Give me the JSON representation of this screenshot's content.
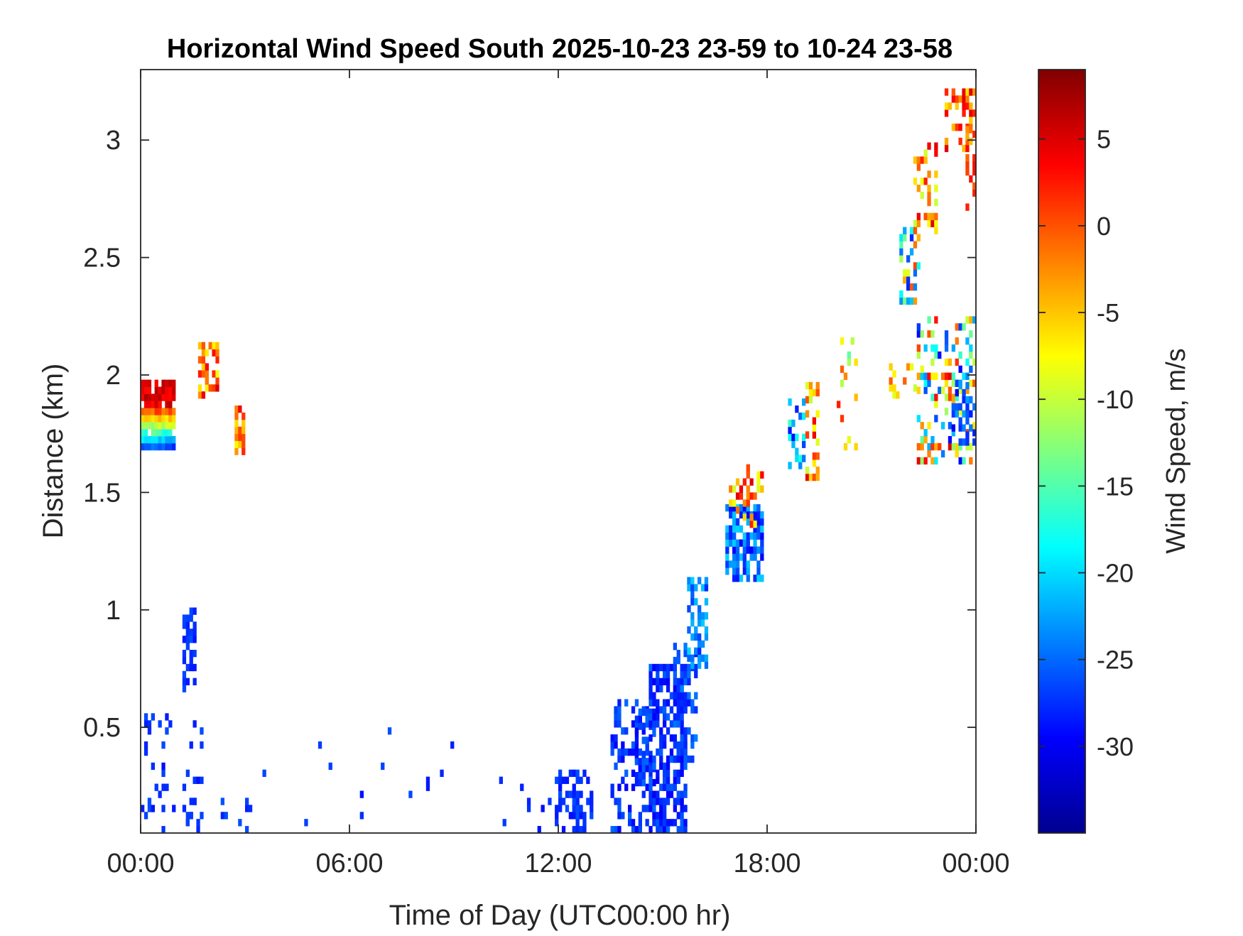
{
  "chart_data": {
    "type": "heatmap",
    "title": "Horizontal Wind Speed South 2025-10-23 23-59 to 10-24 23-58",
    "xlabel": "Time of Day (UTC00:00 hr)",
    "ylabel": "Distance (km)",
    "xlim_hours": [
      0,
      24
    ],
    "ylim": [
      0.05,
      3.3
    ],
    "x_ticks": [
      {
        "value": 0,
        "label": "00:00"
      },
      {
        "value": 6,
        "label": "06:00"
      },
      {
        "value": 12,
        "label": "12:00"
      },
      {
        "value": 18,
        "label": "18:00"
      },
      {
        "value": 24,
        "label": "00:00"
      }
    ],
    "y_ticks": [
      {
        "value": 0.5,
        "label": "0.5"
      },
      {
        "value": 1,
        "label": "1"
      },
      {
        "value": 1.5,
        "label": "1.5"
      },
      {
        "value": 2,
        "label": "2"
      },
      {
        "value": 2.5,
        "label": "2.5"
      },
      {
        "value": 3,
        "label": "3"
      }
    ],
    "colorbar": {
      "label": "Wind Speed, m/s",
      "colormap": "jet",
      "range": [
        -35,
        9
      ],
      "ticks": [
        {
          "value": 5,
          "label": "5"
        },
        {
          "value": 0,
          "label": "0"
        },
        {
          "value": -5,
          "label": "-5"
        },
        {
          "value": -10,
          "label": "-10"
        },
        {
          "value": -15,
          "label": "-15"
        },
        {
          "value": -20,
          "label": "-20"
        },
        {
          "value": -25,
          "label": "-25"
        },
        {
          "value": -30,
          "label": "-30"
        }
      ]
    },
    "grid": false,
    "cell_size": {
      "dt_hours": 0.1,
      "dz_km": 0.03
    },
    "clusters": [
      {
        "t": [
          0.0,
          1.0
        ],
        "z": [
          1.68,
          1.97
        ],
        "v": [
          -26,
          5
        ],
        "fill": 0.92,
        "vertical_gradient": true
      },
      {
        "t": [
          1.65,
          2.2
        ],
        "z": [
          1.9,
          2.12
        ],
        "v": [
          -8,
          5
        ],
        "fill": 0.55
      },
      {
        "t": [
          2.7,
          3.0
        ],
        "z": [
          1.66,
          1.85
        ],
        "v": [
          -10,
          5
        ],
        "fill": 0.6
      },
      {
        "t": [
          1.2,
          1.6
        ],
        "z": [
          0.65,
          1.0
        ],
        "v": [
          -29,
          -26
        ],
        "fill": 0.45
      },
      {
        "t": [
          0.0,
          1.8
        ],
        "z": [
          0.05,
          0.55
        ],
        "v": [
          -29,
          -26
        ],
        "fill": 0.12
      },
      {
        "t": [
          1.2,
          3.2
        ],
        "z": [
          0.05,
          0.2
        ],
        "v": [
          -29,
          -26
        ],
        "fill": 0.2
      },
      {
        "t": [
          3.5,
          10.5
        ],
        "z": [
          0.05,
          0.5
        ],
        "v": [
          -29,
          -26
        ],
        "fill": 0.012
      },
      {
        "t": [
          10.8,
          12.0
        ],
        "z": [
          0.05,
          0.25
        ],
        "v": [
          -29,
          -26
        ],
        "fill": 0.1
      },
      {
        "t": [
          11.9,
          13.0
        ],
        "z": [
          0.05,
          0.3
        ],
        "v": [
          -29,
          -26
        ],
        "fill": 0.45
      },
      {
        "t": [
          13.5,
          14.6
        ],
        "z": [
          0.05,
          0.6
        ],
        "v": [
          -30,
          -25
        ],
        "fill": 0.35
      },
      {
        "t": [
          14.2,
          14.8
        ],
        "z": [
          0.25,
          0.58
        ],
        "v": [
          -30,
          -25
        ],
        "fill": 0.6
      },
      {
        "t": [
          14.6,
          15.7
        ],
        "z": [
          0.05,
          0.75
        ],
        "v": [
          -30,
          -25
        ],
        "fill": 0.55
      },
      {
        "t": [
          15.3,
          16.0
        ],
        "z": [
          0.35,
          0.85
        ],
        "v": [
          -29,
          -24
        ],
        "fill": 0.45
      },
      {
        "t": [
          15.7,
          16.3
        ],
        "z": [
          0.75,
          1.12
        ],
        "v": [
          -28,
          -20
        ],
        "fill": 0.5
      },
      {
        "t": [
          16.8,
          17.9
        ],
        "z": [
          1.12,
          1.45
        ],
        "v": [
          -30,
          -20
        ],
        "fill": 0.65
      },
      {
        "t": [
          16.9,
          17.9
        ],
        "z": [
          1.35,
          1.62
        ],
        "v": [
          -10,
          5
        ],
        "fill": 0.4
      },
      {
        "t": [
          18.6,
          19.1
        ],
        "z": [
          1.6,
          1.9
        ],
        "v": [
          -30,
          -15
        ],
        "fill": 0.3
      },
      {
        "t": [
          19.1,
          19.5
        ],
        "z": [
          1.55,
          1.95
        ],
        "v": [
          -12,
          5
        ],
        "fill": 0.35
      },
      {
        "t": [
          20.0,
          20.6
        ],
        "z": [
          1.65,
          2.2
        ],
        "v": [
          -15,
          5
        ],
        "fill": 0.12
      },
      {
        "t": [
          21.5,
          22.3
        ],
        "z": [
          1.9,
          2.05
        ],
        "v": [
          -10,
          0
        ],
        "fill": 0.35
      },
      {
        "t": [
          21.8,
          22.4
        ],
        "z": [
          2.3,
          2.65
        ],
        "v": [
          -28,
          5
        ],
        "fill": 0.45
      },
      {
        "t": [
          22.2,
          22.9
        ],
        "z": [
          2.6,
          2.98
        ],
        "v": [
          -10,
          5
        ],
        "fill": 0.35
      },
      {
        "t": [
          22.3,
          24.0
        ],
        "z": [
          1.62,
          2.25
        ],
        "v": [
          -30,
          5
        ],
        "fill": 0.35
      },
      {
        "t": [
          23.3,
          24.0
        ],
        "z": [
          1.7,
          1.95
        ],
        "v": [
          -30,
          -22
        ],
        "fill": 0.5
      },
      {
        "t": [
          23.1,
          24.0
        ],
        "z": [
          2.95,
          3.22
        ],
        "v": [
          -8,
          5
        ],
        "fill": 0.4
      },
      {
        "t": [
          23.7,
          24.0
        ],
        "z": [
          2.7,
          3.05
        ],
        "v": [
          -5,
          5
        ],
        "fill": 0.35
      }
    ]
  }
}
